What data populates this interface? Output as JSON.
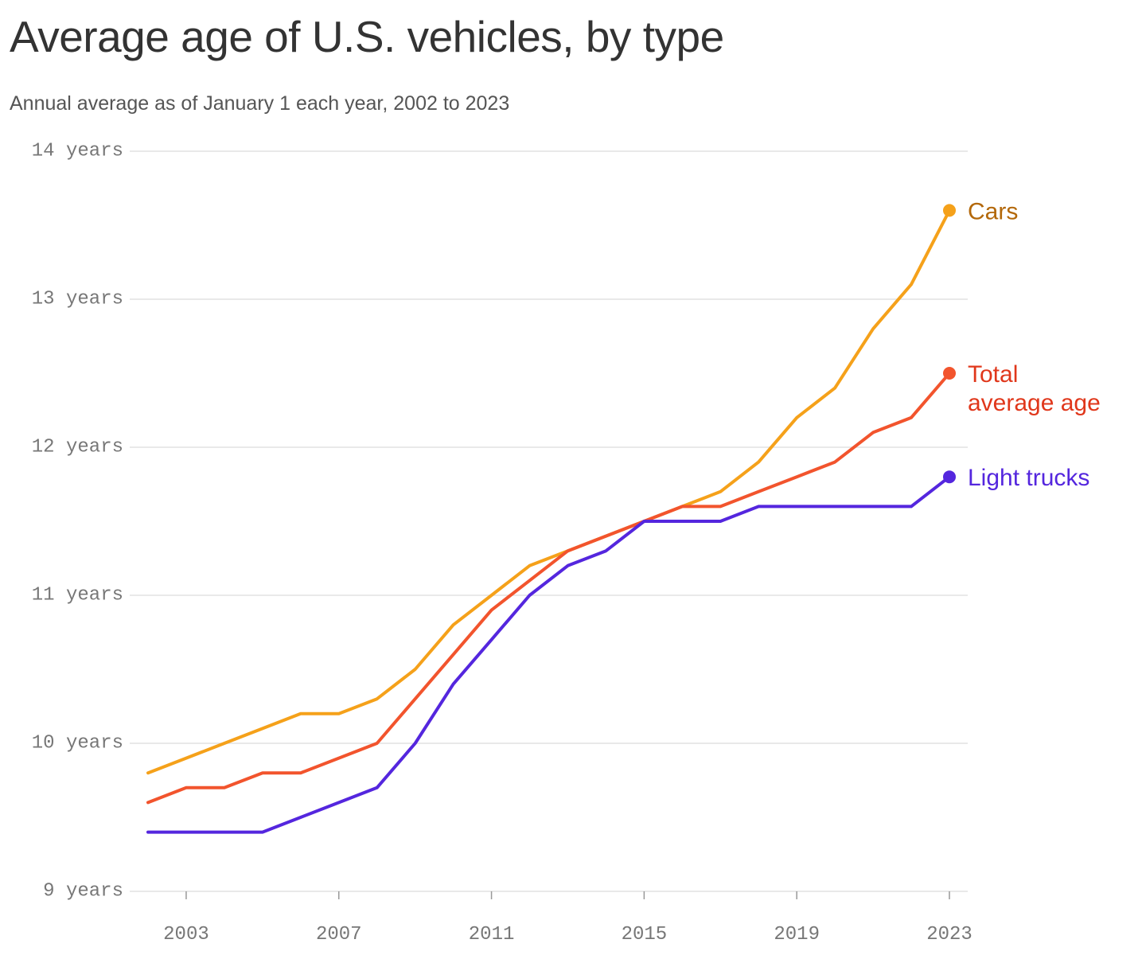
{
  "chart_data": {
    "type": "line",
    "title": "Average age of U.S. vehicles, by type",
    "subtitle": "Annual average as of January 1 each year, 2002 to 2023",
    "x": [
      2002,
      2003,
      2004,
      2005,
      2006,
      2007,
      2008,
      2009,
      2010,
      2011,
      2012,
      2013,
      2014,
      2015,
      2016,
      2017,
      2018,
      2019,
      2020,
      2021,
      2022,
      2023
    ],
    "xticks": [
      2003,
      2007,
      2011,
      2015,
      2019,
      2023
    ],
    "xtick_labels": [
      "2003",
      "2007",
      "2011",
      "2015",
      "2019",
      "2023"
    ],
    "ylim": [
      9,
      14
    ],
    "yticks": [
      9,
      10,
      11,
      12,
      13,
      14
    ],
    "ytick_labels": [
      "9 years",
      "10 years",
      "11 years",
      "12 years",
      "13 years",
      "14 years"
    ],
    "grid": true,
    "series": [
      {
        "name": "Cars",
        "label_lines": [
          "Cars"
        ],
        "color": "#F5A11A",
        "label_color": "#B3680A",
        "values": [
          9.8,
          9.9,
          10.0,
          10.1,
          10.2,
          10.2,
          10.3,
          10.5,
          10.8,
          11.0,
          11.2,
          11.3,
          11.4,
          11.5,
          11.6,
          11.7,
          11.9,
          12.2,
          12.4,
          12.8,
          13.1,
          13.6
        ]
      },
      {
        "name": "Total average age",
        "label_lines": [
          "Total",
          "average age"
        ],
        "color": "#F2542D",
        "label_color": "#E0371B",
        "values": [
          9.6,
          9.7,
          9.7,
          9.8,
          9.8,
          9.9,
          10.0,
          10.3,
          10.6,
          10.9,
          11.1,
          11.3,
          11.4,
          11.5,
          11.6,
          11.6,
          11.7,
          11.8,
          11.9,
          12.1,
          12.2,
          12.5
        ]
      },
      {
        "name": "Light trucks",
        "label_lines": [
          "Light trucks"
        ],
        "color": "#5426DE",
        "label_color": "#5426DE",
        "values": [
          9.4,
          9.4,
          9.4,
          9.4,
          9.5,
          9.6,
          9.7,
          10.0,
          10.4,
          10.7,
          11.0,
          11.2,
          11.3,
          11.5,
          11.5,
          11.5,
          11.6,
          11.6,
          11.6,
          11.6,
          11.6,
          11.8
        ]
      }
    ]
  }
}
